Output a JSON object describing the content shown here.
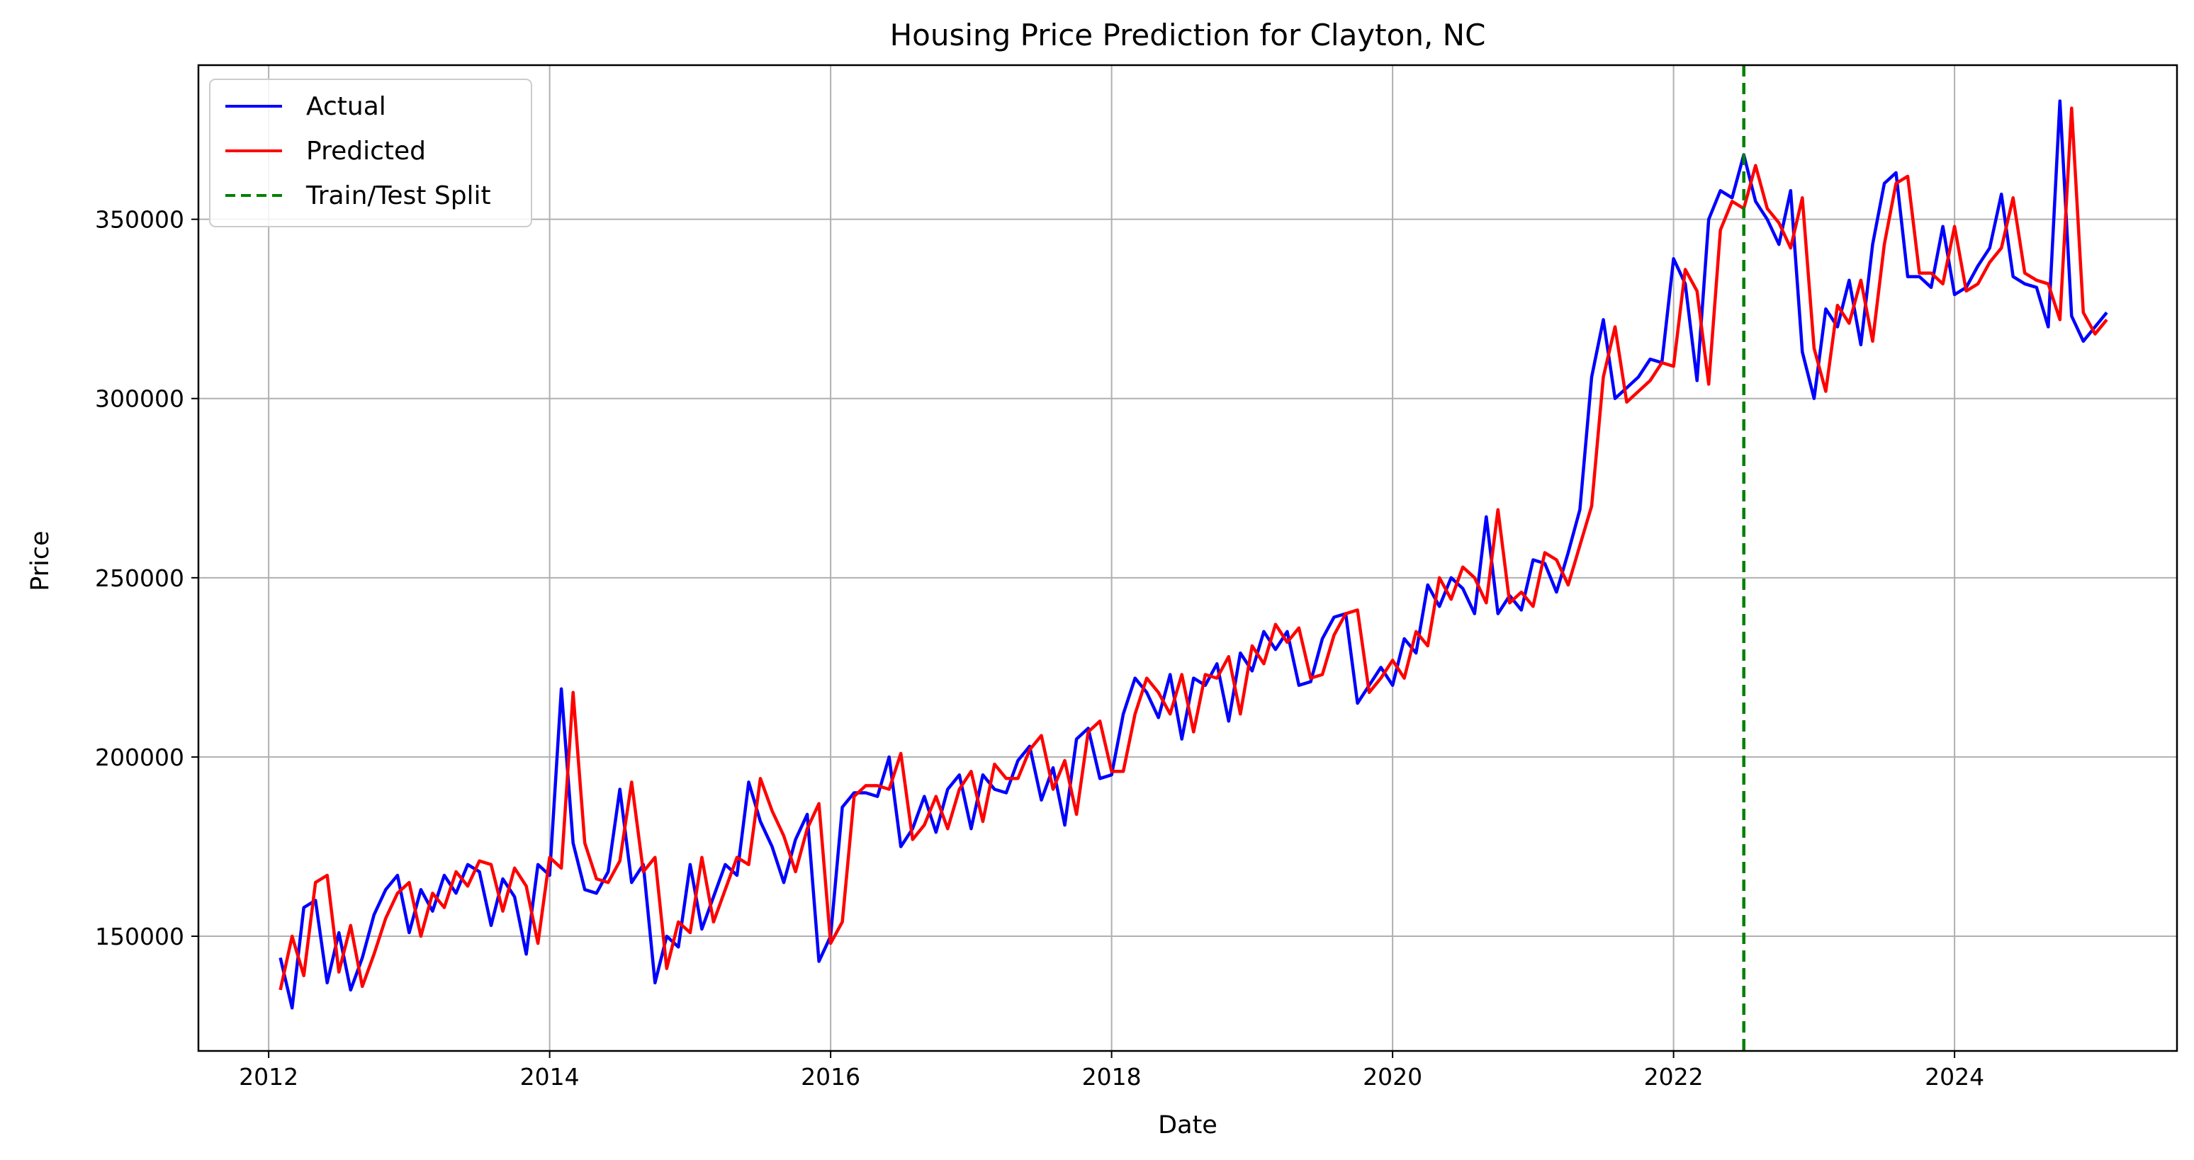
{
  "chart_data": {
    "type": "line",
    "title": "Housing Price Prediction for Clayton, NC",
    "xlabel": "Date",
    "ylabel": "Price",
    "xlim": [
      "2011-07-01",
      "2025-08-01"
    ],
    "ylim": [
      118000,
      393000
    ],
    "x_ticks": [
      "2012",
      "2014",
      "2016",
      "2018",
      "2020",
      "2022",
      "2024"
    ],
    "y_ticks": [
      150000,
      200000,
      250000,
      300000,
      350000
    ],
    "grid": true,
    "legend_position": "top-left",
    "colors": {
      "Actual": "#0000ff",
      "Predicted": "#ff0000",
      "Train/Test Split": "#008000"
    },
    "split_date": "2022-07-01",
    "split_label": "Train/Test Split",
    "x": [
      "2012-02",
      "2012-03",
      "2012-04",
      "2012-05",
      "2012-06",
      "2012-07",
      "2012-08",
      "2012-09",
      "2012-10",
      "2012-11",
      "2012-12",
      "2013-01",
      "2013-02",
      "2013-03",
      "2013-04",
      "2013-05",
      "2013-06",
      "2013-07",
      "2013-08",
      "2013-09",
      "2013-10",
      "2013-11",
      "2013-12",
      "2014-01",
      "2014-02",
      "2014-03",
      "2014-04",
      "2014-05",
      "2014-06",
      "2014-07",
      "2014-08",
      "2014-09",
      "2014-10",
      "2014-11",
      "2014-12",
      "2015-01",
      "2015-02",
      "2015-03",
      "2015-04",
      "2015-05",
      "2015-06",
      "2015-07",
      "2015-08",
      "2015-09",
      "2015-10",
      "2015-11",
      "2015-12",
      "2016-01",
      "2016-02",
      "2016-03",
      "2016-04",
      "2016-05",
      "2016-06",
      "2016-07",
      "2016-08",
      "2016-09",
      "2016-10",
      "2016-11",
      "2016-12",
      "2017-01",
      "2017-02",
      "2017-03",
      "2017-04",
      "2017-05",
      "2017-06",
      "2017-07",
      "2017-08",
      "2017-09",
      "2017-10",
      "2017-11",
      "2017-12",
      "2018-01",
      "2018-02",
      "2018-03",
      "2018-04",
      "2018-05",
      "2018-06",
      "2018-07",
      "2018-08",
      "2018-09",
      "2018-10",
      "2018-11",
      "2018-12",
      "2019-01",
      "2019-02",
      "2019-03",
      "2019-04",
      "2019-05",
      "2019-06",
      "2019-07",
      "2019-08",
      "2019-09",
      "2019-10",
      "2019-11",
      "2019-12",
      "2020-01",
      "2020-02",
      "2020-03",
      "2020-04",
      "2020-05",
      "2020-06",
      "2020-07",
      "2020-08",
      "2020-09",
      "2020-10",
      "2020-11",
      "2020-12",
      "2021-01",
      "2021-02",
      "2021-03",
      "2021-04",
      "2021-05",
      "2021-06",
      "2021-07",
      "2021-08",
      "2021-09",
      "2021-10",
      "2021-11",
      "2021-12",
      "2022-01",
      "2022-02",
      "2022-03",
      "2022-04",
      "2022-05",
      "2022-06",
      "2022-07",
      "2022-08",
      "2022-09",
      "2022-10",
      "2022-11",
      "2022-12",
      "2023-01",
      "2023-02",
      "2023-03",
      "2023-04",
      "2023-05",
      "2023-06",
      "2023-07",
      "2023-08",
      "2023-09",
      "2023-10",
      "2023-11",
      "2023-12",
      "2024-01",
      "2024-02",
      "2024-03",
      "2024-04",
      "2024-05",
      "2024-06",
      "2024-07",
      "2024-08",
      "2024-09",
      "2024-10",
      "2024-11",
      "2024-12",
      "2025-01",
      "2025-02"
    ],
    "series": [
      {
        "name": "Actual",
        "values": [
          144000,
          130000,
          158000,
          160000,
          137000,
          151000,
          135000,
          144000,
          156000,
          163000,
          167000,
          151000,
          163000,
          157000,
          167000,
          162000,
          170000,
          168000,
          153000,
          166000,
          161000,
          145000,
          170000,
          167000,
          219000,
          176000,
          163000,
          162000,
          168000,
          191000,
          165000,
          170000,
          137000,
          150000,
          147000,
          170000,
          152000,
          161000,
          170000,
          167000,
          193000,
          182000,
          175000,
          165000,
          177000,
          184000,
          143000,
          150000,
          186000,
          190000,
          190000,
          189000,
          200000,
          175000,
          180000,
          189000,
          179000,
          191000,
          195000,
          180000,
          195000,
          191000,
          190000,
          199000,
          203000,
          188000,
          197000,
          181000,
          205000,
          208000,
          194000,
          195000,
          212000,
          222000,
          218000,
          211000,
          223000,
          205000,
          222000,
          220000,
          226000,
          210000,
          229000,
          224000,
          235000,
          230000,
          235000,
          220000,
          221000,
          233000,
          239000,
          240000,
          215000,
          220000,
          225000,
          220000,
          233000,
          229000,
          248000,
          242000,
          250000,
          247000,
          240000,
          267000,
          240000,
          245000,
          241000,
          255000,
          254000,
          246000,
          257000,
          269000,
          306000,
          322000,
          300000,
          303000,
          306000,
          311000,
          310000,
          339000,
          332000,
          305000,
          350000,
          358000,
          356000,
          368000,
          355000,
          350000,
          343000,
          358000,
          313000,
          300000,
          325000,
          320000,
          333000,
          315000,
          343000,
          360000,
          363000,
          334000,
          334000,
          331000,
          348000,
          329000,
          331000,
          337000,
          342000,
          357000,
          334000,
          332000,
          331000,
          320000,
          383000,
          323000,
          316000,
          320000,
          324000
        ]
      },
      {
        "name": "Predicted",
        "values": [
          135000,
          150000,
          139000,
          165000,
          167000,
          140000,
          153000,
          136000,
          145000,
          155000,
          162000,
          165000,
          150000,
          162000,
          158000,
          168000,
          164000,
          171000,
          170000,
          157000,
          169000,
          164000,
          148000,
          172000,
          169000,
          218000,
          176000,
          166000,
          165000,
          171000,
          193000,
          168000,
          172000,
          141000,
          154000,
          151000,
          172000,
          154000,
          163000,
          172000,
          170000,
          194000,
          185000,
          178000,
          168000,
          180000,
          187000,
          148000,
          154000,
          189000,
          192000,
          192000,
          191000,
          201000,
          177000,
          181000,
          189000,
          180000,
          191000,
          196000,
          182000,
          198000,
          194000,
          194000,
          202000,
          206000,
          191000,
          199000,
          184000,
          207000,
          210000,
          196000,
          196000,
          212000,
          222000,
          218000,
          212000,
          223000,
          207000,
          223000,
          222000,
          228000,
          212000,
          231000,
          226000,
          237000,
          232000,
          236000,
          222000,
          223000,
          234000,
          240000,
          241000,
          218000,
          222000,
          227000,
          222000,
          235000,
          231000,
          250000,
          244000,
          253000,
          250000,
          243000,
          269000,
          243000,
          246000,
          242000,
          257000,
          255000,
          248000,
          259000,
          270000,
          306000,
          320000,
          299000,
          302000,
          305000,
          310000,
          309000,
          336000,
          330000,
          304000,
          347000,
          355000,
          353000,
          365000,
          353000,
          349000,
          342000,
          356000,
          314000,
          302000,
          326000,
          321000,
          333000,
          316000,
          343000,
          360000,
          362000,
          335000,
          335000,
          332000,
          348000,
          330000,
          332000,
          338000,
          342000,
          356000,
          335000,
          333000,
          332000,
          322000,
          381000,
          324000,
          318000,
          322000
        ]
      }
    ]
  }
}
